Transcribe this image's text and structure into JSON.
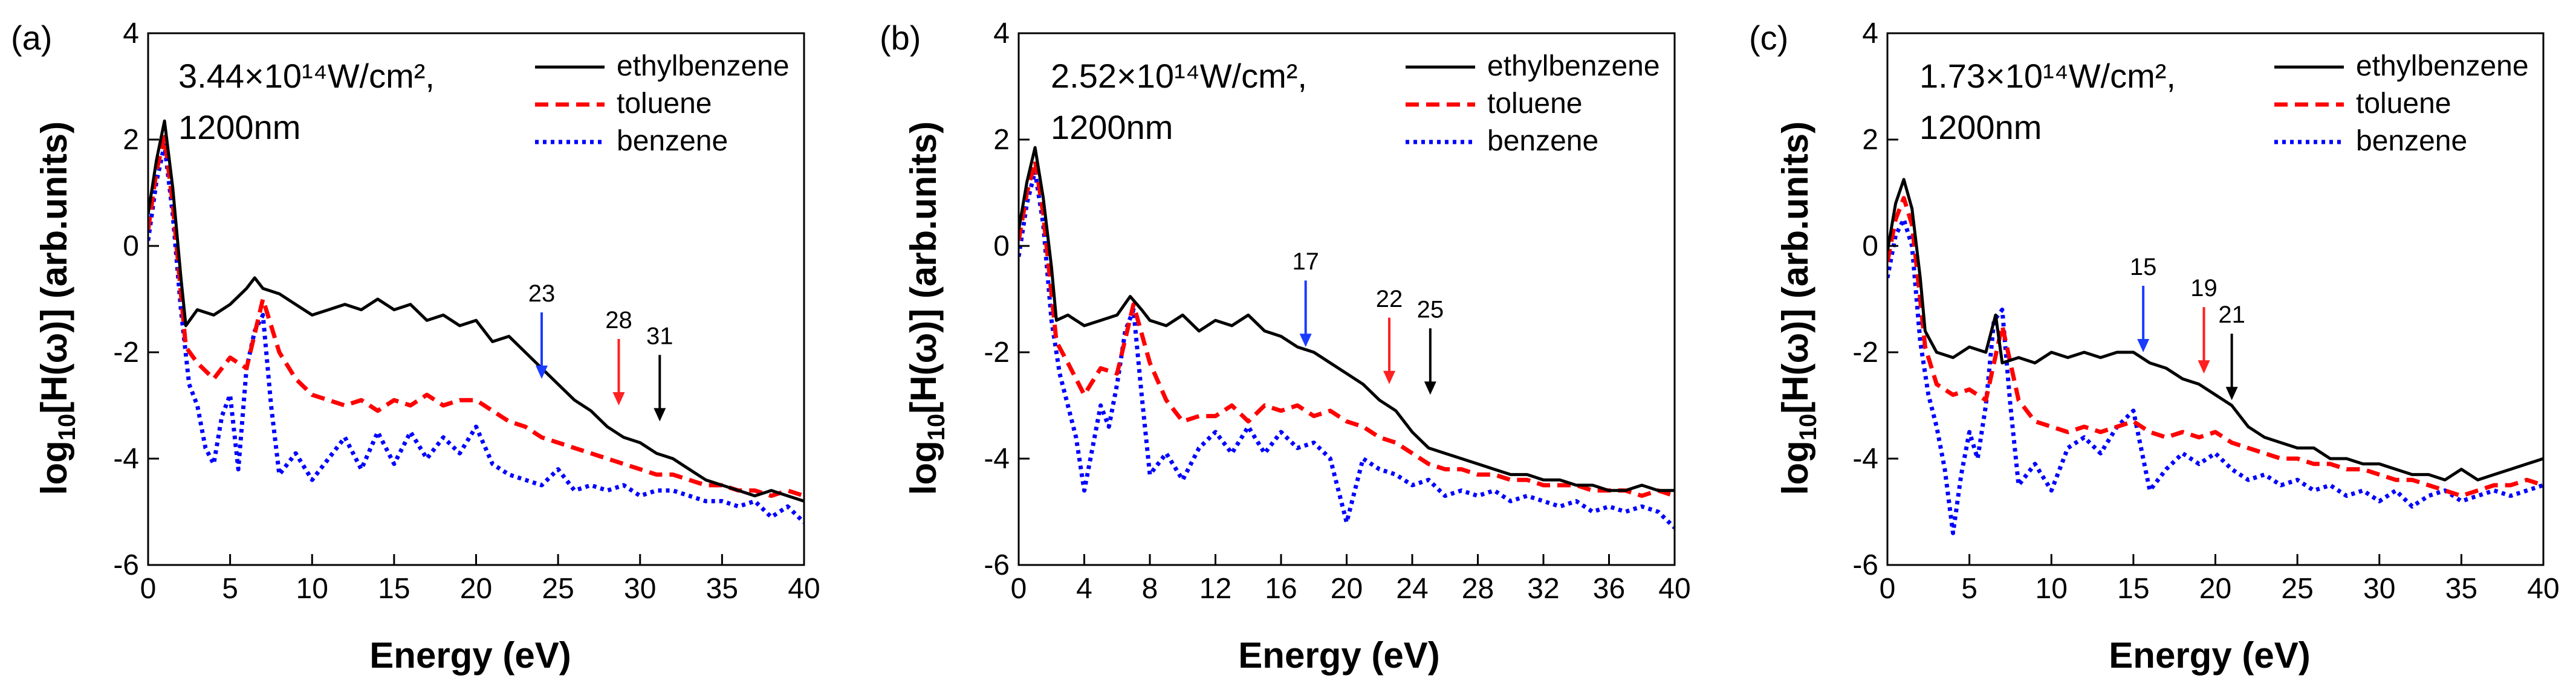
{
  "chart_data": [
    {
      "type": "line",
      "panel_label": "(a)",
      "condition_line1": "3.44×10¹⁴W/cm²,",
      "condition_line2": "1200nm",
      "xlabel": "Energy (eV)",
      "ylabel": "log10[H(ω)] (arb.units)",
      "xlim": [
        0,
        40
      ],
      "ylim": [
        -6,
        4
      ],
      "xticks": [
        0,
        5,
        10,
        15,
        20,
        25,
        30,
        35,
        40
      ],
      "yticks": [
        -6,
        -4,
        -2,
        0,
        2,
        4
      ],
      "legend_position": "top-right",
      "series": [
        {
          "name": "ethylbenzene",
          "color": "#000000",
          "dash": "solid",
          "x": [
            0,
            0.5,
            1,
            1.5,
            2,
            2.3,
            3,
            4,
            5,
            6,
            6.5,
            7,
            8,
            9,
            10,
            11,
            12,
            13,
            14,
            15,
            16,
            17,
            18,
            19,
            20,
            21,
            22,
            23,
            24,
            25,
            26,
            27,
            28,
            29,
            30,
            31,
            32,
            33,
            34,
            35,
            36,
            37,
            38,
            39,
            40
          ],
          "y": [
            0.6,
            1.6,
            2.35,
            1.1,
            -0.6,
            -1.5,
            -1.2,
            -1.3,
            -1.1,
            -0.8,
            -0.6,
            -0.8,
            -0.9,
            -1.1,
            -1.3,
            -1.2,
            -1.1,
            -1.2,
            -1.0,
            -1.2,
            -1.1,
            -1.4,
            -1.3,
            -1.5,
            -1.4,
            -1.8,
            -1.7,
            -2.0,
            -2.3,
            -2.6,
            -2.9,
            -3.1,
            -3.4,
            -3.6,
            -3.7,
            -3.9,
            -4.0,
            -4.2,
            -4.4,
            -4.5,
            -4.6,
            -4.7,
            -4.6,
            -4.7,
            -4.8
          ]
        },
        {
          "name": "toluene",
          "color": "#ff0000",
          "dash": "dash",
          "x": [
            0,
            0.5,
            1,
            1.5,
            2,
            2.3,
            3,
            4,
            5,
            6,
            7,
            8,
            9,
            10,
            11,
            12,
            13,
            14,
            15,
            16,
            17,
            18,
            19,
            20,
            21,
            22,
            23,
            24,
            25,
            26,
            27,
            28,
            29,
            30,
            31,
            32,
            33,
            34,
            35,
            36,
            37,
            38,
            39,
            40
          ],
          "y": [
            0.3,
            1.4,
            2.05,
            0.8,
            -0.9,
            -1.9,
            -2.2,
            -2.5,
            -2.1,
            -2.3,
            -1.0,
            -2.0,
            -2.5,
            -2.8,
            -2.9,
            -3.0,
            -2.9,
            -3.1,
            -2.9,
            -3.0,
            -2.8,
            -3.0,
            -2.9,
            -2.9,
            -3.1,
            -3.3,
            -3.4,
            -3.6,
            -3.7,
            -3.8,
            -3.9,
            -4.0,
            -4.1,
            -4.2,
            -4.3,
            -4.3,
            -4.4,
            -4.5,
            -4.5,
            -4.6,
            -4.6,
            -4.7,
            -4.6,
            -4.7
          ]
        },
        {
          "name": "benzene",
          "color": "#0000ff",
          "dash": "dot",
          "x": [
            0,
            0.5,
            1,
            1.5,
            2,
            2.5,
            3,
            3.5,
            4,
            4.5,
            5,
            5.5,
            6,
            6.5,
            7,
            7.5,
            8,
            9,
            10,
            11,
            12,
            13,
            14,
            15,
            16,
            17,
            18,
            19,
            20,
            21,
            22,
            23,
            24,
            25,
            26,
            27,
            28,
            29,
            30,
            31,
            32,
            33,
            34,
            35,
            36,
            37,
            38,
            39,
            40
          ],
          "y": [
            0.1,
            1.2,
            1.9,
            0.6,
            -1.2,
            -2.6,
            -3.0,
            -3.8,
            -4.1,
            -3.2,
            -2.8,
            -4.2,
            -2.3,
            -1.6,
            -1.3,
            -3.0,
            -4.3,
            -3.9,
            -4.4,
            -4.0,
            -3.6,
            -4.2,
            -3.5,
            -4.1,
            -3.5,
            -4.0,
            -3.6,
            -3.9,
            -3.4,
            -4.1,
            -4.3,
            -4.4,
            -4.5,
            -4.2,
            -4.6,
            -4.5,
            -4.6,
            -4.5,
            -4.7,
            -4.6,
            -4.6,
            -4.7,
            -4.8,
            -4.8,
            -4.9,
            -4.8,
            -5.1,
            -4.9,
            -5.2
          ]
        }
      ],
      "annotations": [
        {
          "text": "23",
          "x": 24,
          "y_tip": -2.5,
          "color": "#1a3cff"
        },
        {
          "text": "28",
          "x": 28.7,
          "y_tip": -3.0,
          "color": "#ff2020"
        },
        {
          "text": "31",
          "x": 31.2,
          "y_tip": -3.3,
          "color": "#000000"
        }
      ]
    },
    {
      "type": "line",
      "panel_label": "(b)",
      "condition_line1": "2.52×10¹⁴W/cm²,",
      "condition_line2": "1200nm",
      "xlabel": "Energy (eV)",
      "ylabel": "log10[H(ω)] (arb.units)",
      "xlim": [
        0,
        40
      ],
      "ylim": [
        -6,
        4
      ],
      "xticks": [
        0,
        4,
        8,
        12,
        16,
        20,
        24,
        28,
        32,
        36,
        40
      ],
      "yticks": [
        -6,
        -4,
        -2,
        0,
        2,
        4
      ],
      "legend_position": "top-right",
      "series": [
        {
          "name": "ethylbenzene",
          "color": "#000000",
          "dash": "solid",
          "x": [
            0,
            0.5,
            1,
            1.5,
            2,
            2.3,
            3,
            4,
            5,
            6,
            6.8,
            7.5,
            8,
            9,
            10,
            11,
            12,
            13,
            14,
            15,
            16,
            17,
            18,
            19,
            20,
            21,
            22,
            23,
            24,
            25,
            26,
            27,
            28,
            29,
            30,
            31,
            32,
            33,
            34,
            35,
            36,
            37,
            38,
            39,
            40
          ],
          "y": [
            0.3,
            1.2,
            1.85,
            0.9,
            -0.4,
            -1.4,
            -1.3,
            -1.5,
            -1.4,
            -1.3,
            -0.95,
            -1.2,
            -1.4,
            -1.5,
            -1.3,
            -1.6,
            -1.4,
            -1.5,
            -1.3,
            -1.6,
            -1.7,
            -1.9,
            -2.0,
            -2.2,
            -2.4,
            -2.6,
            -2.9,
            -3.1,
            -3.5,
            -3.8,
            -3.9,
            -4.0,
            -4.1,
            -4.2,
            -4.3,
            -4.3,
            -4.4,
            -4.4,
            -4.5,
            -4.5,
            -4.6,
            -4.6,
            -4.5,
            -4.6,
            -4.6
          ]
        },
        {
          "name": "toluene",
          "color": "#ff0000",
          "dash": "dash",
          "x": [
            0,
            0.5,
            1,
            1.5,
            2,
            2.3,
            3,
            4,
            5,
            6,
            7,
            8,
            9,
            10,
            11,
            12,
            13,
            14,
            15,
            16,
            17,
            18,
            19,
            20,
            21,
            22,
            23,
            24,
            25,
            26,
            27,
            28,
            29,
            30,
            31,
            32,
            33,
            34,
            35,
            36,
            37,
            38,
            39,
            40
          ],
          "y": [
            0.1,
            1.0,
            1.6,
            0.6,
            -0.9,
            -1.8,
            -2.2,
            -2.8,
            -2.3,
            -2.4,
            -1.1,
            -2.2,
            -2.9,
            -3.3,
            -3.2,
            -3.2,
            -3.0,
            -3.3,
            -3.0,
            -3.1,
            -3.0,
            -3.2,
            -3.1,
            -3.3,
            -3.4,
            -3.6,
            -3.7,
            -3.9,
            -4.1,
            -4.2,
            -4.2,
            -4.3,
            -4.3,
            -4.4,
            -4.4,
            -4.5,
            -4.5,
            -4.5,
            -4.6,
            -4.6,
            -4.6,
            -4.7,
            -4.6,
            -4.7
          ]
        },
        {
          "name": "benzene",
          "color": "#0000ff",
          "dash": "dot",
          "x": [
            0,
            0.5,
            1,
            1.5,
            2,
            2.5,
            3,
            3.5,
            4,
            4.5,
            5,
            5.5,
            6,
            6.5,
            7,
            7.5,
            8,
            9,
            10,
            11,
            12,
            13,
            14,
            15,
            16,
            17,
            18,
            19,
            20,
            21,
            22,
            23,
            24,
            25,
            26,
            27,
            28,
            29,
            30,
            31,
            32,
            33,
            34,
            35,
            36,
            37,
            38,
            39,
            40
          ],
          "y": [
            -0.2,
            0.8,
            1.4,
            0.4,
            -1.4,
            -2.4,
            -3.0,
            -3.6,
            -4.6,
            -3.8,
            -3.0,
            -3.4,
            -2.6,
            -1.6,
            -1.2,
            -2.8,
            -4.3,
            -3.9,
            -4.4,
            -3.8,
            -3.5,
            -3.9,
            -3.4,
            -3.9,
            -3.5,
            -3.8,
            -3.7,
            -4.0,
            -5.2,
            -4.0,
            -4.2,
            -4.3,
            -4.5,
            -4.4,
            -4.7,
            -4.6,
            -4.7,
            -4.6,
            -4.8,
            -4.7,
            -4.8,
            -4.9,
            -4.8,
            -5.0,
            -4.9,
            -5.0,
            -4.9,
            -5.0,
            -5.3
          ]
        }
      ],
      "annotations": [
        {
          "text": "17",
          "x": 17.5,
          "y_tip": -1.9,
          "color": "#1a3cff"
        },
        {
          "text": "22",
          "x": 22.6,
          "y_tip": -2.6,
          "color": "#ff2020"
        },
        {
          "text": "25",
          "x": 25.1,
          "y_tip": -2.8,
          "color": "#000000"
        }
      ]
    },
    {
      "type": "line",
      "panel_label": "(c)",
      "condition_line1": "1.73×10¹⁴W/cm²,",
      "condition_line2": "1200nm",
      "xlabel": "Energy (eV)",
      "ylabel": "log10[H(ω)] (arb.units)",
      "xlim": [
        0,
        40
      ],
      "ylim": [
        -6,
        4
      ],
      "xticks": [
        0,
        5,
        10,
        15,
        20,
        25,
        30,
        35,
        40
      ],
      "yticks": [
        -6,
        -4,
        -2,
        0,
        2,
        4
      ],
      "legend_position": "top-right",
      "series": [
        {
          "name": "ethylbenzene",
          "color": "#000000",
          "dash": "solid",
          "x": [
            0,
            0.5,
            1,
            1.5,
            2,
            2.3,
            3,
            4,
            5,
            6,
            6.6,
            7,
            8,
            9,
            10,
            11,
            12,
            13,
            14,
            15,
            16,
            17,
            18,
            19,
            20,
            21,
            22,
            23,
            24,
            25,
            26,
            27,
            28,
            29,
            30,
            31,
            32,
            33,
            34,
            35,
            36,
            37,
            38,
            39,
            40
          ],
          "y": [
            -0.1,
            0.8,
            1.25,
            0.7,
            -0.6,
            -1.6,
            -2.0,
            -2.1,
            -1.9,
            -2.0,
            -1.3,
            -2.2,
            -2.1,
            -2.2,
            -2.0,
            -2.1,
            -2.0,
            -2.1,
            -2.0,
            -2.0,
            -2.2,
            -2.3,
            -2.5,
            -2.6,
            -2.8,
            -3.0,
            -3.4,
            -3.6,
            -3.7,
            -3.8,
            -3.8,
            -4.0,
            -4.0,
            -4.1,
            -4.1,
            -4.2,
            -4.3,
            -4.3,
            -4.4,
            -4.2,
            -4.4,
            -4.3,
            -4.2,
            -4.1,
            -4.0
          ]
        },
        {
          "name": "toluene",
          "color": "#ff0000",
          "dash": "dash",
          "x": [
            0,
            0.5,
            1,
            1.5,
            2,
            2.3,
            3,
            4,
            5,
            6,
            7,
            8,
            9,
            10,
            11,
            12,
            13,
            14,
            15,
            16,
            17,
            18,
            19,
            20,
            21,
            22,
            23,
            24,
            25,
            26,
            27,
            28,
            29,
            30,
            31,
            32,
            33,
            34,
            35,
            36,
            37,
            38,
            39,
            40
          ],
          "y": [
            -0.3,
            0.5,
            0.9,
            0.4,
            -1.0,
            -1.9,
            -2.6,
            -2.8,
            -2.7,
            -2.9,
            -1.5,
            -2.9,
            -3.3,
            -3.4,
            -3.5,
            -3.4,
            -3.5,
            -3.4,
            -3.3,
            -3.5,
            -3.6,
            -3.5,
            -3.6,
            -3.5,
            -3.7,
            -3.8,
            -3.9,
            -4.0,
            -4.0,
            -4.1,
            -4.1,
            -4.2,
            -4.2,
            -4.3,
            -4.4,
            -4.4,
            -4.5,
            -4.6,
            -4.7,
            -4.6,
            -4.5,
            -4.5,
            -4.4,
            -4.5
          ]
        },
        {
          "name": "benzene",
          "color": "#0000ff",
          "dash": "dot",
          "x": [
            0,
            0.5,
            1,
            1.5,
            2,
            2.5,
            3,
            3.5,
            4,
            4.5,
            5,
            5.5,
            6,
            6.5,
            7,
            7.5,
            8,
            9,
            10,
            11,
            12,
            13,
            14,
            15,
            16,
            17,
            18,
            19,
            20,
            21,
            22,
            23,
            24,
            25,
            26,
            27,
            28,
            29,
            30,
            31,
            32,
            33,
            34,
            35,
            36,
            37,
            38,
            39,
            40
          ],
          "y": [
            -0.6,
            0.2,
            0.5,
            0.0,
            -1.8,
            -2.8,
            -3.4,
            -4.2,
            -5.4,
            -4.3,
            -3.5,
            -4.0,
            -3.0,
            -1.4,
            -1.2,
            -3.0,
            -4.5,
            -4.1,
            -4.6,
            -3.8,
            -3.6,
            -3.9,
            -3.4,
            -3.1,
            -4.6,
            -4.2,
            -3.9,
            -4.1,
            -3.9,
            -4.2,
            -4.4,
            -4.3,
            -4.5,
            -4.4,
            -4.6,
            -4.5,
            -4.7,
            -4.6,
            -4.8,
            -4.6,
            -4.9,
            -4.7,
            -4.6,
            -4.8,
            -4.7,
            -4.6,
            -4.7,
            -4.6,
            -4.5
          ]
        }
      ],
      "annotations": [
        {
          "text": "15",
          "x": 15.6,
          "y_tip": -2.0,
          "color": "#1a3cff"
        },
        {
          "text": "19",
          "x": 19.3,
          "y_tip": -2.4,
          "color": "#ff2020"
        },
        {
          "text": "21",
          "x": 21.0,
          "y_tip": -2.9,
          "color": "#000000"
        }
      ]
    }
  ]
}
